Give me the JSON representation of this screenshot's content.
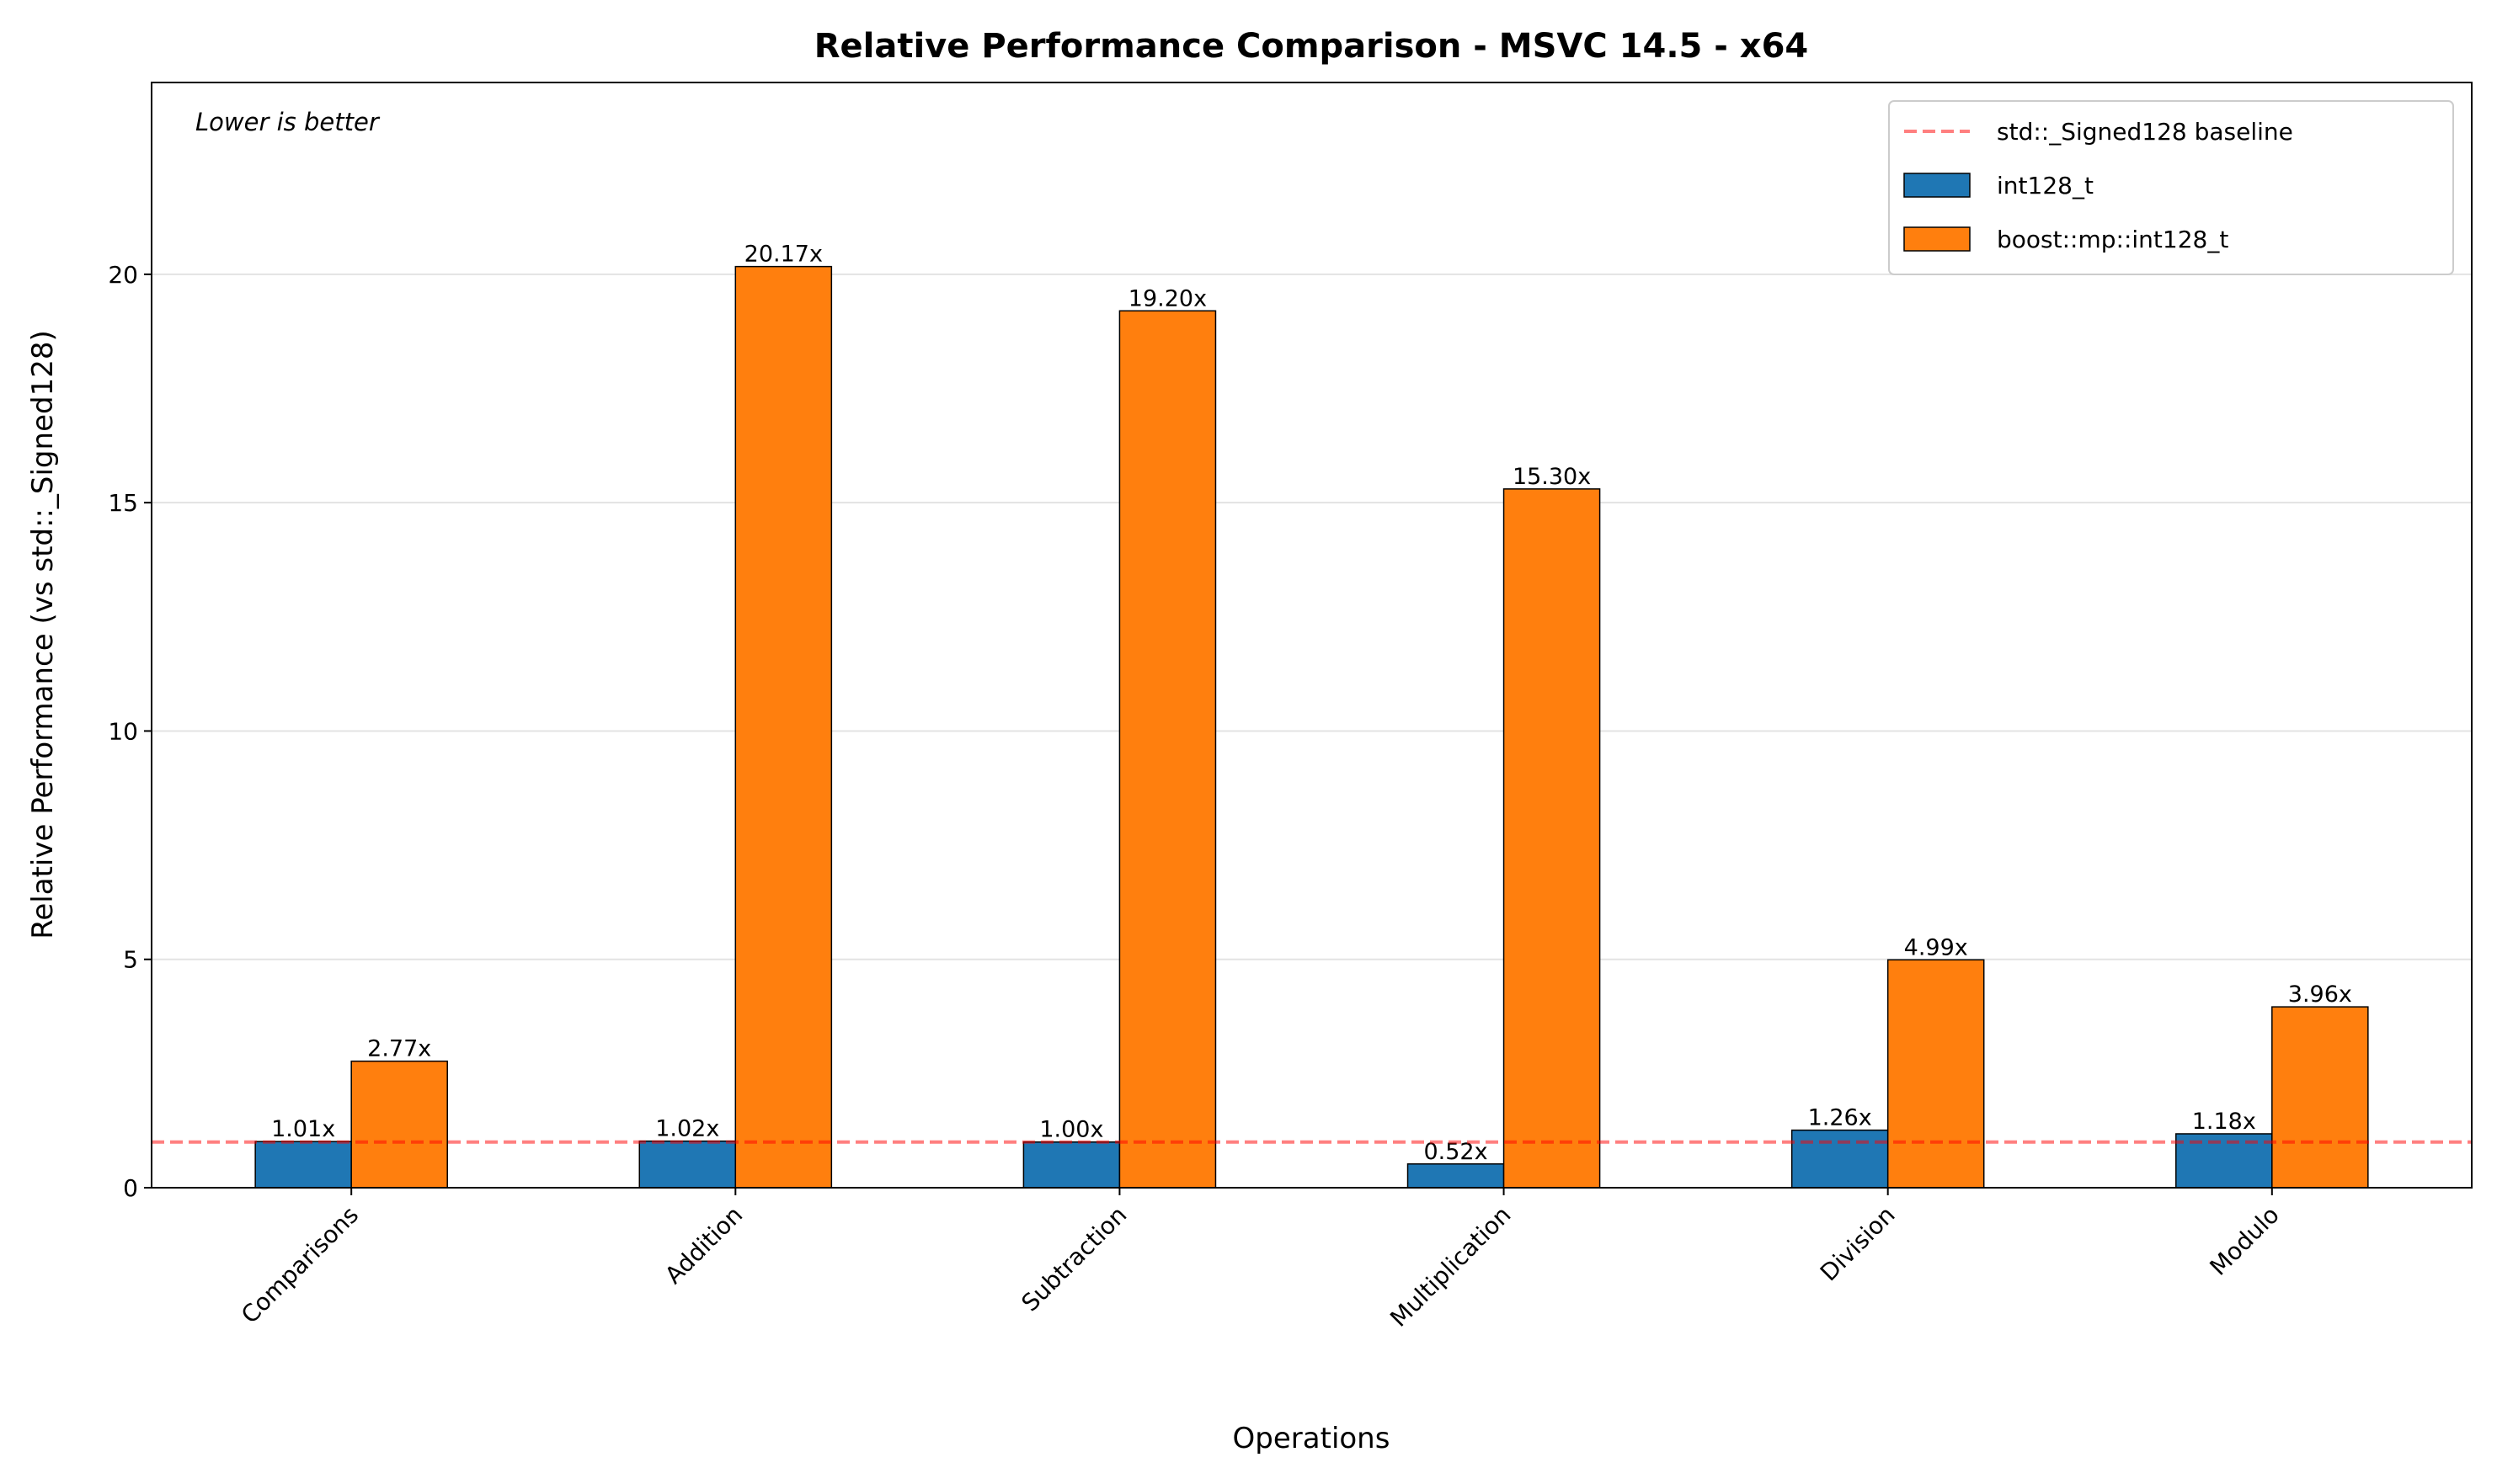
{
  "chart_data": {
    "type": "bar",
    "title": "Relative Performance Comparison - MSVC 14.5 - x64",
    "annotation": "Lower is better",
    "x_label": "Operations",
    "y_label": "Relative Performance (vs std::_Signed128)",
    "categories": [
      "Comparisons",
      "Addition",
      "Subtraction",
      "Multiplication",
      "Division",
      "Modulo"
    ],
    "series": [
      {
        "name": "int128_t",
        "color": "#1f77b4",
        "values": [
          1.01,
          1.02,
          1.0,
          0.52,
          1.26,
          1.18
        ],
        "value_labels": [
          "1.01x",
          "1.02x",
          "1.00x",
          "0.52x",
          "1.26x",
          "1.18x"
        ]
      },
      {
        "name": "boost::mp::int128_t",
        "color": "#ff7f0e",
        "values": [
          2.77,
          20.17,
          19.2,
          15.3,
          4.99,
          3.96
        ],
        "value_labels": [
          "2.77x",
          "20.17x",
          "19.20x",
          "15.30x",
          "4.99x",
          "3.96x"
        ]
      }
    ],
    "baseline": {
      "name": "std::_Signed128 baseline",
      "value": 1,
      "color": "#ff0000"
    },
    "ylim": [
      0,
      24.2
    ],
    "yticks": [
      0,
      5,
      10,
      15,
      20
    ],
    "grid": true,
    "legend": "upper right"
  }
}
